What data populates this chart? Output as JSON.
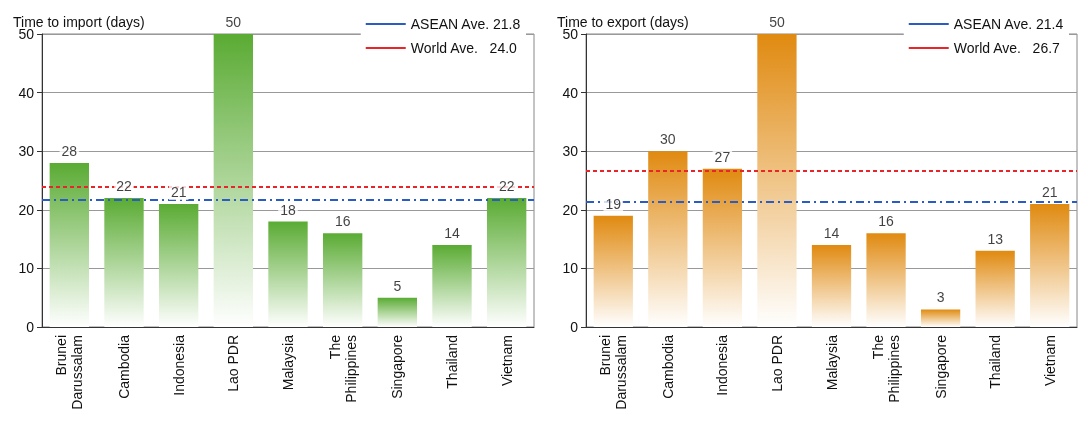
{
  "chart_data": [
    {
      "type": "bar",
      "title": "Time to import (days)",
      "categories": [
        "Brunei\nDarussalam",
        "Cambodia",
        "Indonesia",
        "Lao PDR",
        "Malaysia",
        "The\nPhilippines",
        "Singapore",
        "Thailand",
        "Vietnam"
      ],
      "values": [
        28,
        22,
        21,
        50,
        18,
        16,
        5,
        14,
        22
      ],
      "color": "#5aab33",
      "ylim": [
        0,
        50
      ],
      "yticks": [
        0,
        10,
        20,
        30,
        40,
        50
      ],
      "grid": "y",
      "data_labels": true,
      "legend": "top right",
      "ref_lines": [
        {
          "axis": "y",
          "value": 21.8,
          "label": "ASEAN Ave. 21.8",
          "color": "#2a5cc4",
          "line_style": "dashed"
        },
        {
          "axis": "y",
          "value": 24.0,
          "label": "World Ave.   24.0",
          "color": "#e8262a",
          "line_style": "dotted"
        }
      ]
    },
    {
      "type": "bar",
      "title": "Time to export (days)",
      "categories": [
        "Brunei\nDarussalam",
        "Cambodia",
        "Indonesia",
        "Lao PDR",
        "Malaysia",
        "The\nPhilippines",
        "Singapore",
        "Thailand",
        "Vietnam"
      ],
      "values": [
        19,
        30,
        27,
        50,
        14,
        16,
        3,
        13,
        21
      ],
      "color": "#e08a10",
      "ylim": [
        0,
        50
      ],
      "yticks": [
        0,
        10,
        20,
        30,
        40,
        50
      ],
      "grid": "y",
      "data_labels": true,
      "legend": "top right",
      "ref_lines": [
        {
          "axis": "y",
          "value": 21.4,
          "label": "ASEAN Ave. 21.4",
          "color": "#2a5cc4",
          "line_style": "dashed"
        },
        {
          "axis": "y",
          "value": 26.7,
          "label": "World Ave.   26.7",
          "color": "#e8262a",
          "line_style": "dotted"
        }
      ]
    }
  ]
}
